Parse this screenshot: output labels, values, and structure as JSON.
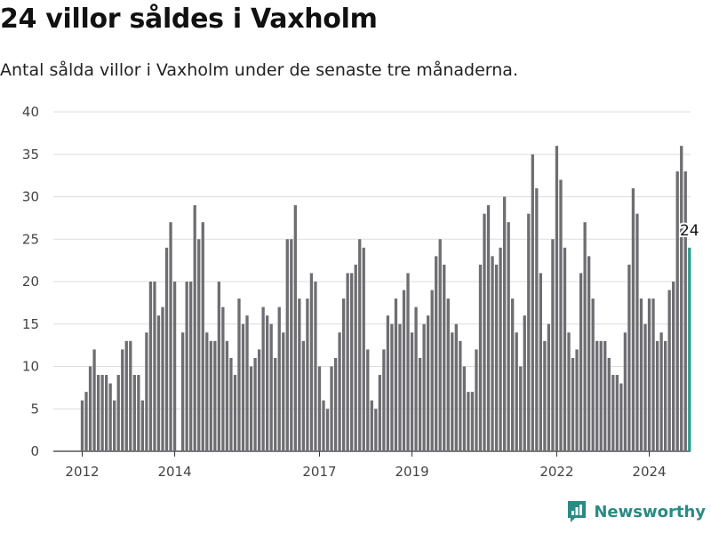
{
  "header": {
    "title": "24 villor såldes i Vaxholm",
    "subtitle": "Antal sålda villor i Vaxholm under de senaste tre månaderna."
  },
  "brand": {
    "name": "Newsworthy",
    "color": "#2a8a84",
    "icon": "newsworthy-logo-icon"
  },
  "chart_data": {
    "type": "bar",
    "title": "24 villor såldes i Vaxholm",
    "subtitle": "Antal sålda villor i Vaxholm under de senaste tre månaderna.",
    "xlabel": "",
    "ylabel": "",
    "ylim": [
      0,
      40
    ],
    "y_ticks": [
      0,
      5,
      10,
      15,
      20,
      25,
      30,
      35,
      40
    ],
    "x_ticks": [
      {
        "label": "2012",
        "index": 0
      },
      {
        "label": "2014",
        "index": 23
      },
      {
        "label": "2017",
        "index": 59
      },
      {
        "label": "2019",
        "index": 82
      },
      {
        "label": "2022",
        "index": 118
      },
      {
        "label": "2024",
        "index": 141
      }
    ],
    "grid": true,
    "bar_color": "#6e6e72",
    "highlight_color": "#2a9d8f",
    "highlight_label": "24",
    "values": [
      6,
      7,
      10,
      12,
      9,
      9,
      9,
      8,
      6,
      9,
      12,
      13,
      13,
      9,
      9,
      6,
      14,
      20,
      20,
      16,
      17,
      24,
      27,
      20,
      0,
      14,
      20,
      20,
      29,
      25,
      27,
      14,
      13,
      13,
      20,
      17,
      13,
      11,
      9,
      18,
      15,
      16,
      10,
      11,
      12,
      17,
      16,
      15,
      11,
      17,
      14,
      25,
      25,
      29,
      18,
      13,
      18,
      21,
      20,
      10,
      6,
      5,
      10,
      11,
      14,
      18,
      21,
      21,
      22,
      25,
      24,
      12,
      6,
      5,
      9,
      12,
      16,
      15,
      18,
      15,
      19,
      21,
      14,
      17,
      11,
      15,
      16,
      19,
      23,
      25,
      22,
      18,
      14,
      15,
      13,
      10,
      7,
      7,
      12,
      22,
      28,
      29,
      23,
      22,
      24,
      30,
      27,
      18,
      14,
      10,
      16,
      28,
      35,
      31,
      21,
      13,
      15,
      25,
      36,
      32,
      24,
      14,
      11,
      12,
      21,
      27,
      23,
      18,
      13,
      13,
      13,
      11,
      9,
      9,
      8,
      14,
      22,
      31,
      28,
      18,
      15,
      18,
      18,
      13,
      14,
      13,
      19,
      20,
      33,
      36,
      33,
      24
    ]
  }
}
